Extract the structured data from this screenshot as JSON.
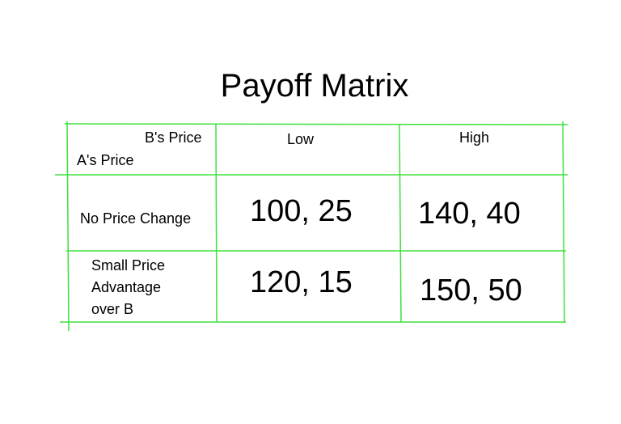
{
  "title": "Payoff Matrix",
  "line_color": "#3ee03e",
  "header": {
    "col_label": "B's Price",
    "row_label": "A's Price",
    "columns": [
      "Low",
      "High"
    ]
  },
  "rows": [
    {
      "label": "No Price Change",
      "cells": [
        "100, 25",
        "140, 40"
      ]
    },
    {
      "label": "Small Price Advantage over B",
      "label_lines": [
        "Small Price",
        "Advantage",
        "over B"
      ],
      "cells": [
        "120, 15",
        "150, 50"
      ]
    }
  ]
}
